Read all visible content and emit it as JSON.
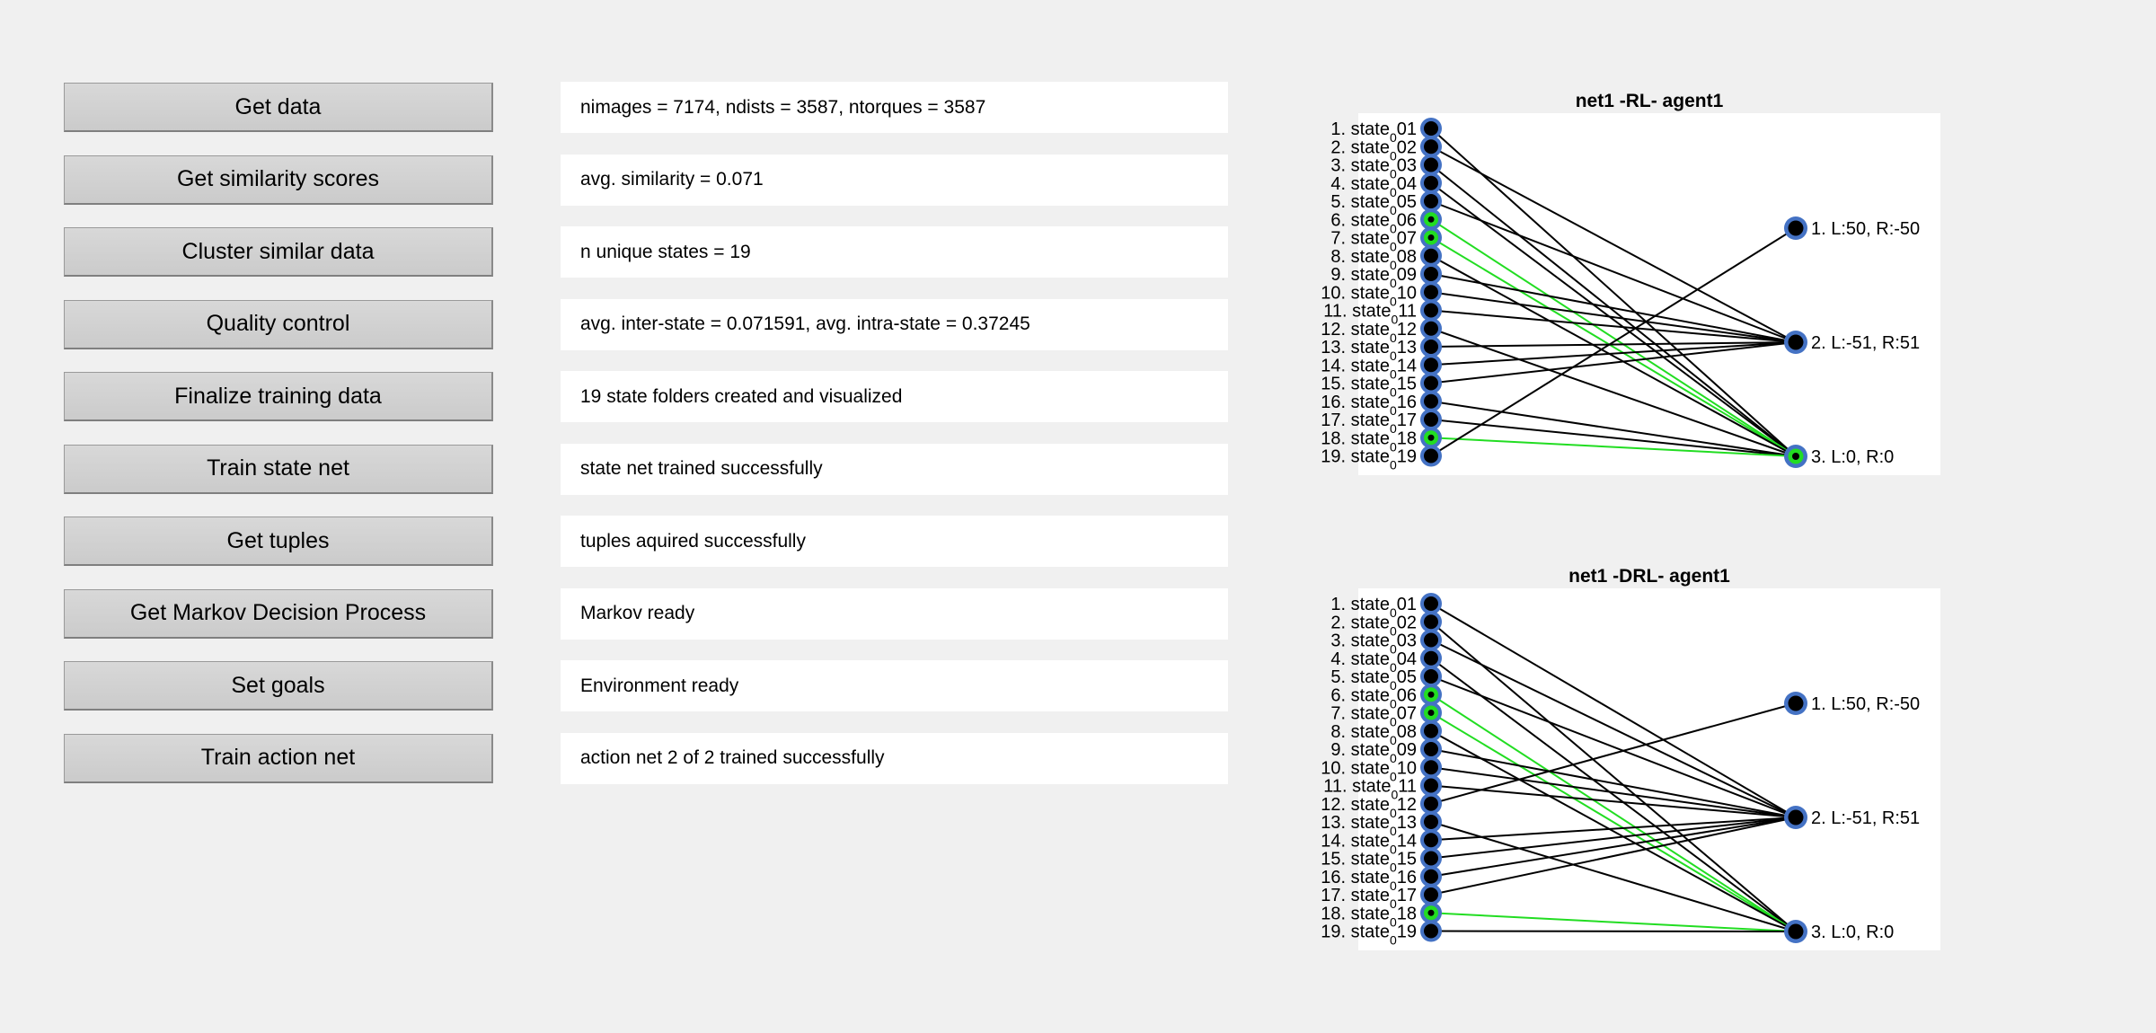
{
  "controls": [
    {
      "label": "Get data",
      "output": "nimages = 7174, ndists = 3587, ntorques = 3587"
    },
    {
      "label": "Get similarity scores",
      "output": "avg. similarity = 0.071"
    },
    {
      "label": "Cluster similar data",
      "output": "n unique states = 19"
    },
    {
      "label": "Quality control",
      "output": "avg. inter-state = 0.071591, avg. intra-state = 0.37245"
    },
    {
      "label": "Finalize training data",
      "output": "19 state folders created and visualized"
    },
    {
      "label": "Train state net",
      "output": "state net trained successfully"
    },
    {
      "label": "Get tuples",
      "output": "tuples aquired successfully"
    },
    {
      "label": "Get Markov Decision Process",
      "output": "Markov ready"
    },
    {
      "label": "Set goals",
      "output": "Environment ready"
    },
    {
      "label": "Train action net",
      "output": "action net 2 of 2 trained successfully"
    }
  ],
  "colors": {
    "node_ring": "#4472c4",
    "node_fill": "#000000",
    "highlight": "#22dd22",
    "edge": "#000000",
    "plot_bg": "#ffffff"
  },
  "chart_data": [
    {
      "type": "network",
      "title": "net1 -RL- agent1",
      "states": [
        {
          "prefix": "1. state",
          "sub": "0",
          "num": "01"
        },
        {
          "prefix": "2. state",
          "sub": "0",
          "num": "02"
        },
        {
          "prefix": "3. state",
          "sub": "0",
          "num": "03"
        },
        {
          "prefix": "4. state",
          "sub": "0",
          "num": "04"
        },
        {
          "prefix": "5. state",
          "sub": "0",
          "num": "05"
        },
        {
          "prefix": "6. state",
          "sub": "0",
          "num": "06"
        },
        {
          "prefix": "7. state",
          "sub": "0",
          "num": "07"
        },
        {
          "prefix": "8. state",
          "sub": "0",
          "num": "08"
        },
        {
          "prefix": "9. state",
          "sub": "0",
          "num": "09"
        },
        {
          "prefix": "10. state",
          "sub": "0",
          "num": "10"
        },
        {
          "prefix": "11. state",
          "sub": "0",
          "num": "11"
        },
        {
          "prefix": "12. state",
          "sub": "0",
          "num": "12"
        },
        {
          "prefix": "13. state",
          "sub": "0",
          "num": "13"
        },
        {
          "prefix": "14. state",
          "sub": "0",
          "num": "14"
        },
        {
          "prefix": "15. state",
          "sub": "0",
          "num": "15"
        },
        {
          "prefix": "16. state",
          "sub": "0",
          "num": "16"
        },
        {
          "prefix": "17. state",
          "sub": "0",
          "num": "17"
        },
        {
          "prefix": "18. state",
          "sub": "0",
          "num": "18"
        },
        {
          "prefix": "19. state",
          "sub": "0",
          "num": "19"
        }
      ],
      "actions": [
        "1.  L:50,  R:-50",
        "2.  L:-51,  R:51",
        "3.  L:0,  R:0"
      ],
      "highlighted_states": [
        6,
        7,
        18
      ],
      "edges": [
        [
          1,
          3
        ],
        [
          2,
          2
        ],
        [
          3,
          3
        ],
        [
          4,
          3
        ],
        [
          5,
          2
        ],
        [
          6,
          3
        ],
        [
          7,
          3
        ],
        [
          8,
          3
        ],
        [
          9,
          2
        ],
        [
          10,
          2
        ],
        [
          11,
          2
        ],
        [
          12,
          3
        ],
        [
          13,
          2
        ],
        [
          14,
          2
        ],
        [
          15,
          2
        ],
        [
          16,
          3
        ],
        [
          17,
          3
        ],
        [
          18,
          3
        ],
        [
          19,
          1
        ]
      ]
    },
    {
      "type": "network",
      "title": "net1 -DRL- agent1",
      "states": [
        {
          "prefix": "1. state",
          "sub": "0",
          "num": "01"
        },
        {
          "prefix": "2. state",
          "sub": "0",
          "num": "02"
        },
        {
          "prefix": "3. state",
          "sub": "0",
          "num": "03"
        },
        {
          "prefix": "4. state",
          "sub": "0",
          "num": "04"
        },
        {
          "prefix": "5. state",
          "sub": "0",
          "num": "05"
        },
        {
          "prefix": "6. state",
          "sub": "0",
          "num": "06"
        },
        {
          "prefix": "7. state",
          "sub": "0",
          "num": "07"
        },
        {
          "prefix": "8. state",
          "sub": "0",
          "num": "08"
        },
        {
          "prefix": "9. state",
          "sub": "0",
          "num": "09"
        },
        {
          "prefix": "10. state",
          "sub": "0",
          "num": "10"
        },
        {
          "prefix": "11. state",
          "sub": "0",
          "num": "11"
        },
        {
          "prefix": "12. state",
          "sub": "0",
          "num": "12"
        },
        {
          "prefix": "13. state",
          "sub": "0",
          "num": "13"
        },
        {
          "prefix": "14. state",
          "sub": "0",
          "num": "14"
        },
        {
          "prefix": "15. state",
          "sub": "0",
          "num": "15"
        },
        {
          "prefix": "16. state",
          "sub": "0",
          "num": "16"
        },
        {
          "prefix": "17. state",
          "sub": "0",
          "num": "17"
        },
        {
          "prefix": "18. state",
          "sub": "0",
          "num": "18"
        },
        {
          "prefix": "19. state",
          "sub": "0",
          "num": "19"
        }
      ],
      "actions": [
        "1.  L:50,  R:-50",
        "2.  L:-51,  R:51",
        "3.  L:0,  R:0"
      ],
      "highlighted_states": [
        6,
        7,
        18
      ],
      "edges": [
        [
          1,
          2
        ],
        [
          2,
          3
        ],
        [
          3,
          2
        ],
        [
          4,
          3
        ],
        [
          5,
          2
        ],
        [
          6,
          3
        ],
        [
          7,
          3
        ],
        [
          8,
          3
        ],
        [
          9,
          2
        ],
        [
          10,
          2
        ],
        [
          11,
          2
        ],
        [
          12,
          1
        ],
        [
          13,
          3
        ],
        [
          14,
          2
        ],
        [
          15,
          2
        ],
        [
          16,
          2
        ],
        [
          17,
          2
        ],
        [
          18,
          3
        ],
        [
          19,
          3
        ]
      ]
    }
  ]
}
